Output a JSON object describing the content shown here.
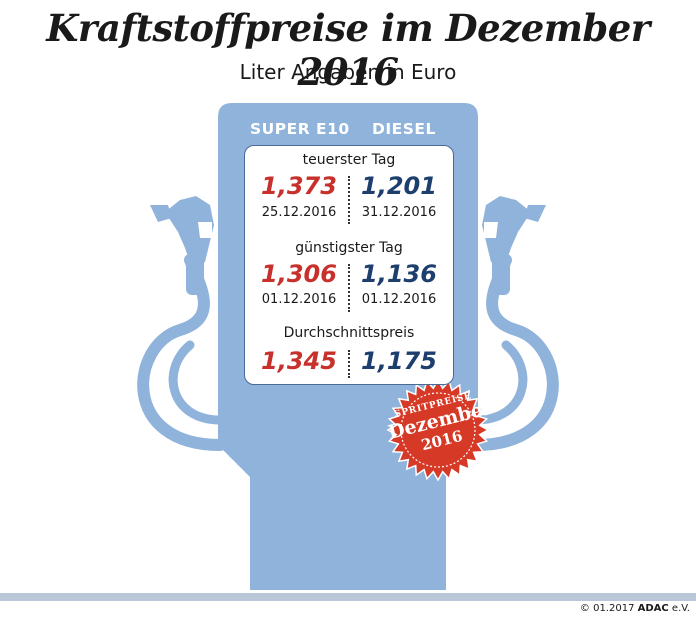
{
  "title": "Kraftstoffpreise im Dezember 2016",
  "subtitle": "Liter Angaben in Euro",
  "pump": {
    "col_left": "SUPER E10",
    "col_right": "DIESEL",
    "sections": [
      {
        "label": "teuerster Tag",
        "left_price": "1,373",
        "left_date": "25.12.2016",
        "right_price": "1,201",
        "right_date": "31.12.2016"
      },
      {
        "label": "günstigster Tag",
        "left_price": "1,306",
        "left_date": "01.12.2016",
        "right_price": "1,136",
        "right_date": "01.12.2016"
      },
      {
        "label": "Durchschnittspreis",
        "left_price": "1,345",
        "right_price": "1,175"
      }
    ]
  },
  "badge": {
    "line1": "SPRITPREISE",
    "line2": "Dezember",
    "line3": "2016"
  },
  "footer": {
    "copyright": "© 01.2017",
    "brand": "ADAC",
    "brand_suffix": " e.V."
  },
  "colors": {
    "super": "#c8302b",
    "diesel": "#1d3f6e",
    "pump": "#8fb3da",
    "badge": "#d63a26"
  },
  "icons": [
    "fuel-nozzle-left-icon",
    "fuel-nozzle-right-icon",
    "starburst-badge-icon"
  ]
}
